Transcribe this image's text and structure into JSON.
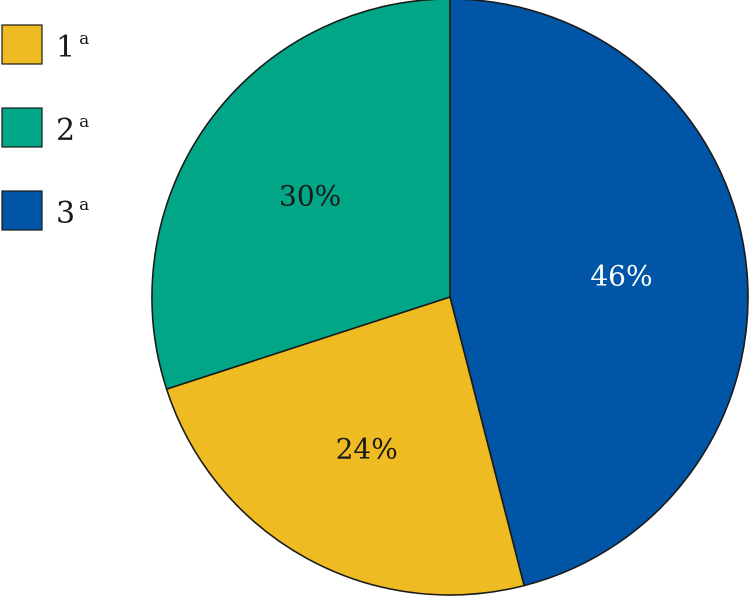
{
  "chart_data": {
    "type": "pie",
    "title": "",
    "legend_position": "top-left",
    "slices": [
      {
        "name": "1",
        "name_sup": "a",
        "value": 24,
        "label": "24%",
        "color": "#eebb22",
        "label_color": "#1a1a1a"
      },
      {
        "name": "2",
        "name_sup": "a",
        "value": 30,
        "label": "30%",
        "color": "#00a685",
        "label_color": "#1a1a1a"
      },
      {
        "name": "3",
        "name_sup": "a",
        "value": 46,
        "label": "46%",
        "color": "#0055a6",
        "label_color": "#ffffff"
      }
    ],
    "drawing_order": [
      2,
      0,
      1
    ]
  }
}
